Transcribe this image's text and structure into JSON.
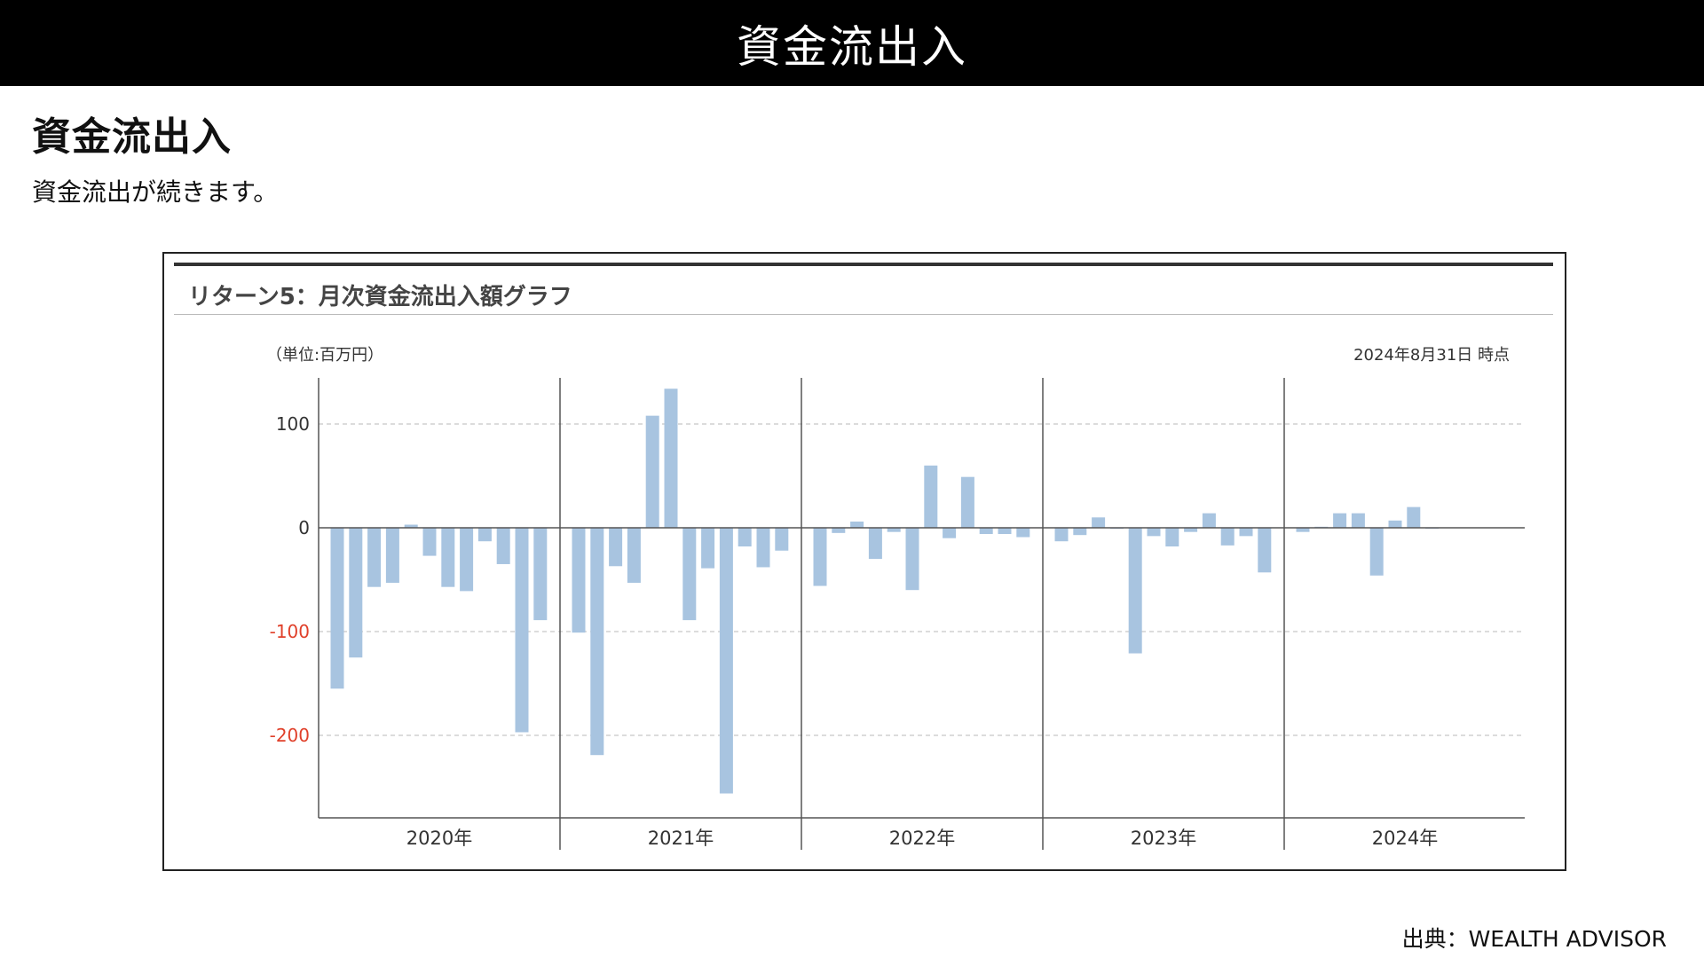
{
  "header": {
    "title": "資金流出入"
  },
  "main": {
    "heading": "資金流出入",
    "description": "資金流出が続きます。"
  },
  "chart": {
    "title": "リターン5：月次資金流出入額グラフ",
    "unit": "（単位:百万円）",
    "as_of": "2024年8月31日 時点"
  },
  "footer": {
    "source": "出典：WEALTH ADVISOR"
  },
  "colors": {
    "bar": "#a8c4e0",
    "negative_tick": "#e0402a",
    "axis": "#555555",
    "grid": "#c8c8c8"
  },
  "chart_data": {
    "type": "bar",
    "title": "リターン5：月次資金流出入額グラフ",
    "unit": "（単位:百万円）",
    "ylim": [
      -280,
      140
    ],
    "yticks": [
      100,
      0,
      -100,
      -200
    ],
    "ytick_labels": [
      "100",
      "0",
      "-100",
      "-200"
    ],
    "grid": true,
    "years": [
      "2020年",
      "2021年",
      "2022年",
      "2023年",
      "2024年"
    ],
    "months_per_year": [
      12,
      12,
      12,
      12,
      8
    ],
    "values": [
      -155,
      -125,
      -57,
      -53,
      3,
      -27,
      -57,
      -61,
      -13,
      -35,
      -197,
      -89,
      -101,
      -219,
      -37,
      -53,
      108,
      134,
      -89,
      -39,
      -256,
      -18,
      -38,
      -22,
      -56,
      -5,
      6,
      -30,
      -4,
      -60,
      60,
      -10,
      49,
      -6,
      -6,
      -9,
      -13,
      -7,
      10,
      -1,
      -121,
      -8,
      -18,
      -4,
      14,
      -17,
      -8,
      -43,
      -4,
      1,
      14,
      14,
      -46,
      7,
      20,
      0
    ]
  }
}
